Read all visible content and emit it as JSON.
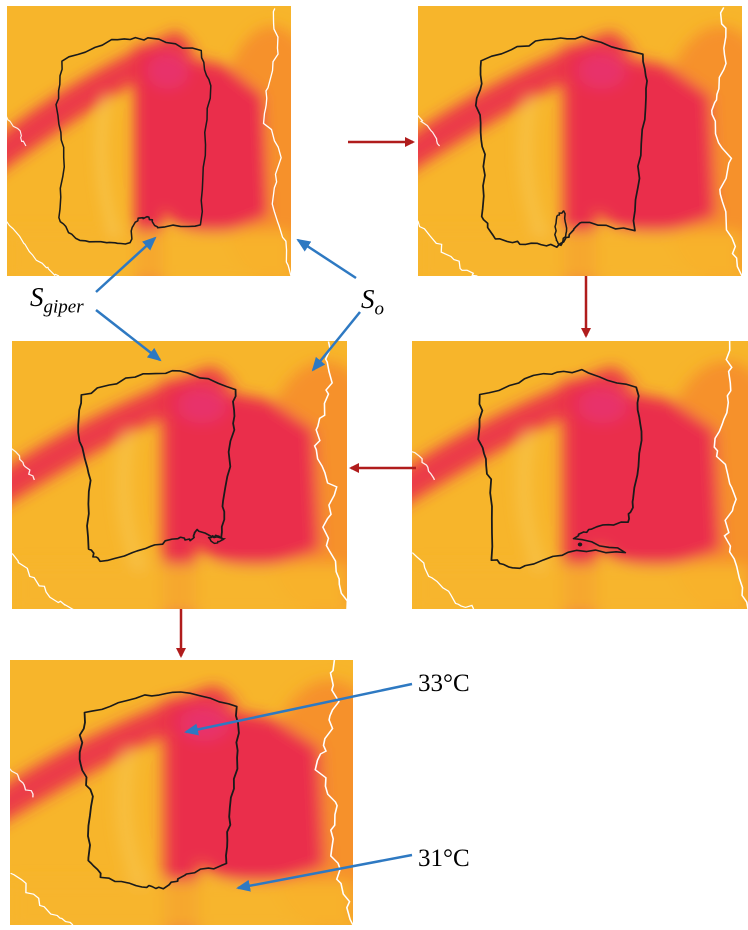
{
  "labels": {
    "s_giper_base": "S",
    "s_giper_sub": "giper",
    "s_o_base": "S",
    "s_o_sub": "o",
    "temp_high": "33°C",
    "temp_low": "31°C"
  },
  "colors": {
    "thermal_base": "#f7b52b",
    "thermal_warm": "#f6882a",
    "thermal_hot": "#ea2d4b",
    "thermal_hotspot": "#e8336a",
    "region_outline": "#1a1a1a",
    "isotherm": "#ffffff",
    "flow_arrow": "#b01c1c",
    "pointer_arrow": "#2e79c2"
  },
  "panels": [
    {
      "step": 1
    },
    {
      "step": 2
    },
    {
      "step": 3
    },
    {
      "step": 4
    },
    {
      "step": 5
    }
  ]
}
